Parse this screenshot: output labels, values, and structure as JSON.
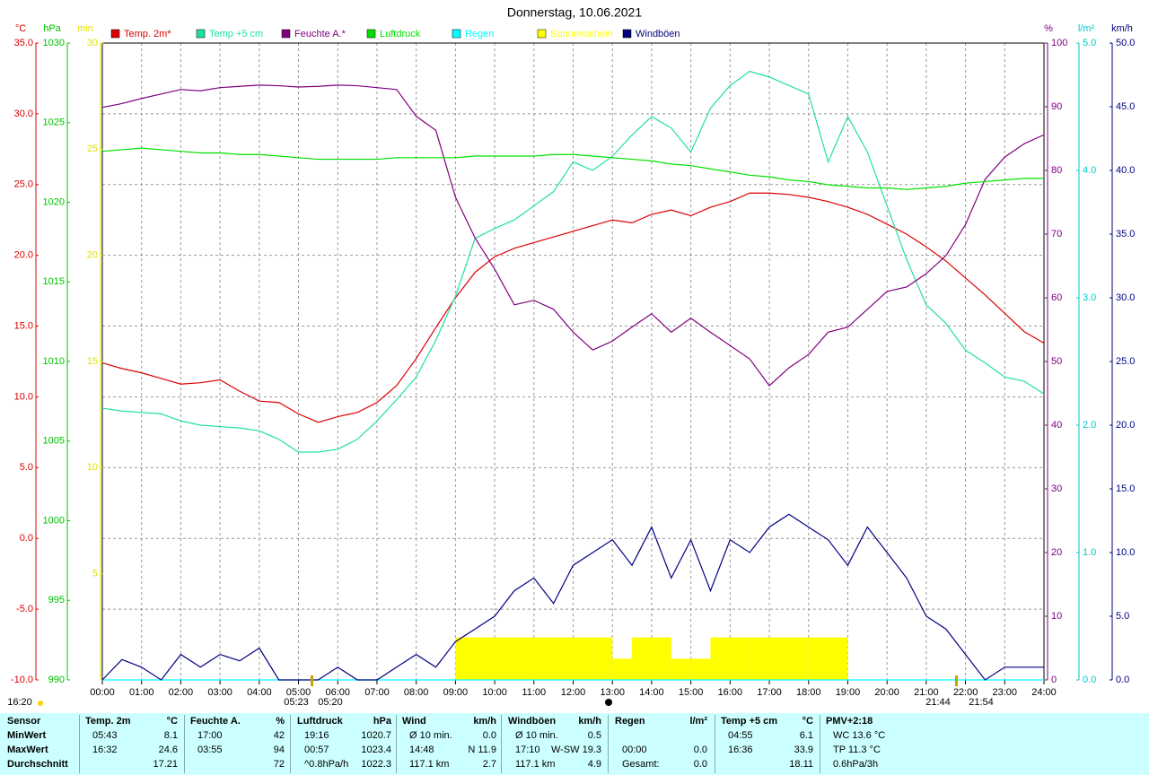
{
  "chart_data": {
    "type": "line",
    "title": "Donnerstag, 10.06.2021",
    "grid": true,
    "x": [
      0,
      0.5,
      1,
      1.5,
      2,
      2.5,
      3,
      3.5,
      4,
      4.5,
      5,
      5.5,
      6,
      6.5,
      7,
      7.5,
      8,
      8.5,
      9,
      9.5,
      10,
      10.5,
      11,
      11.5,
      12,
      12.5,
      13,
      13.5,
      14,
      14.5,
      15,
      15.5,
      16,
      16.5,
      17,
      17.5,
      18,
      18.5,
      19,
      19.5,
      20,
      20.5,
      21,
      21.5,
      22,
      22.5,
      23,
      23.5,
      24
    ],
    "xlim": [
      0,
      24
    ],
    "xticks": [
      {
        "value": 0,
        "label": "00:00"
      },
      {
        "value": 1,
        "label": "01:00"
      },
      {
        "value": 2,
        "label": "02:00"
      },
      {
        "value": 3,
        "label": "03:00"
      },
      {
        "value": 4,
        "label": "04:00"
      },
      {
        "value": 5,
        "label": "05:00"
      },
      {
        "value": 6,
        "label": "06:00"
      },
      {
        "value": 7,
        "label": "07:00"
      },
      {
        "value": 8,
        "label": "08:00"
      },
      {
        "value": 9,
        "label": "09:00"
      },
      {
        "value": 10,
        "label": "10:00"
      },
      {
        "value": 11,
        "label": "11:00"
      },
      {
        "value": 12,
        "label": "12:00"
      },
      {
        "value": 13,
        "label": "13:00"
      },
      {
        "value": 14,
        "label": "14:00"
      },
      {
        "value": 15,
        "label": "15:00"
      },
      {
        "value": 16,
        "label": "16:00"
      },
      {
        "value": 17,
        "label": "17:00"
      },
      {
        "value": 18,
        "label": "18:00"
      },
      {
        "value": 19,
        "label": "19:00"
      },
      {
        "value": 20,
        "label": "20:00"
      },
      {
        "value": 21,
        "label": "21:00"
      },
      {
        "value": 22,
        "label": "22:00"
      },
      {
        "value": 23,
        "label": "23:00"
      },
      {
        "value": 24,
        "label": "24:00"
      }
    ],
    "axes": [
      {
        "unit": "°C",
        "color": "#dd0000",
        "lim": [
          -10,
          35
        ],
        "ticks": [
          {
            "value": -10,
            "label": "-10.0"
          },
          {
            "value": -5,
            "label": "-5.0"
          },
          {
            "value": 0,
            "label": "0.0"
          },
          {
            "value": 5,
            "label": "5.0"
          },
          {
            "value": 10,
            "label": "10.0"
          },
          {
            "value": 15,
            "label": "15.0"
          },
          {
            "value": 20,
            "label": "20.0"
          },
          {
            "value": 25,
            "label": "25.0"
          },
          {
            "value": 30,
            "label": "30.0"
          },
          {
            "value": 35,
            "label": "35.0"
          }
        ]
      },
      {
        "unit": "hPa",
        "color": "#00c000",
        "lim": [
          990,
          1030
        ],
        "ticks": [
          990,
          995,
          1000,
          1005,
          1010,
          1015,
          1020,
          1025,
          1030
        ]
      },
      {
        "unit": "min",
        "color": "#e0e000",
        "lim": [
          0,
          30
        ],
        "ticks": [
          5,
          10,
          15,
          20,
          25,
          30
        ]
      },
      {
        "unit": "%",
        "color": "#800080",
        "lim": [
          0,
          100
        ],
        "ticks": [
          0,
          10,
          20,
          30,
          40,
          50,
          60,
          70,
          80,
          90,
          100
        ]
      },
      {
        "unit": "l/m²",
        "color": "#00c8c8",
        "lim": [
          0,
          5
        ],
        "ticks": [
          {
            "value": 0,
            "label": "0.0"
          },
          {
            "value": 1,
            "label": "1.0"
          },
          {
            "value": 2,
            "label": "2.0"
          },
          {
            "value": 3,
            "label": "3.0"
          },
          {
            "value": 4,
            "label": "4.0"
          },
          {
            "value": 5,
            "label": "5.0"
          }
        ]
      },
      {
        "unit": "km/h",
        "color": "#000080",
        "lim": [
          0,
          50
        ],
        "ticks": [
          {
            "value": 0,
            "label": "0.0"
          },
          {
            "value": 5,
            "label": "5.0"
          },
          {
            "value": 10,
            "label": "10.0"
          },
          {
            "value": 15,
            "label": "15.0"
          },
          {
            "value": 20,
            "label": "20.0"
          },
          {
            "value": 25,
            "label": "25.0"
          },
          {
            "value": 30,
            "label": "30.0"
          },
          {
            "value": 35,
            "label": "35.0"
          },
          {
            "value": 40,
            "label": "40.0"
          },
          {
            "value": 45,
            "label": "45.0"
          },
          {
            "value": 50,
            "label": "50.0"
          }
        ]
      }
    ],
    "series": [
      {
        "name": "Temp. 2m*",
        "color": "#dd0000",
        "axis": 0,
        "style": "line",
        "values": [
          12.4,
          12.0,
          11.7,
          11.3,
          10.9,
          11.0,
          11.2,
          10.4,
          9.7,
          9.6,
          8.8,
          8.2,
          8.6,
          8.9,
          9.6,
          10.8,
          12.7,
          14.9,
          17.0,
          18.8,
          19.9,
          20.5,
          20.9,
          21.3,
          21.7,
          22.1,
          22.5,
          22.3,
          22.9,
          23.2,
          22.8,
          23.4,
          23.8,
          24.4,
          24.4,
          24.3,
          24.1,
          23.8,
          23.4,
          22.9,
          22.2,
          21.5,
          20.6,
          19.6,
          18.4,
          17.2,
          15.9,
          14.6,
          13.8
        ]
      },
      {
        "name": "Temp +5 cm",
        "color": "#20e0a0",
        "axis": 0,
        "style": "line",
        "values": [
          9.2,
          9.0,
          8.9,
          8.8,
          8.3,
          8.0,
          7.9,
          7.8,
          7.6,
          7.0,
          6.1,
          6.1,
          6.3,
          7.0,
          8.3,
          9.8,
          11.4,
          14.0,
          17.1,
          21.2,
          21.9,
          22.5,
          23.5,
          24.5,
          26.6,
          26.0,
          27.0,
          28.5,
          29.8,
          29.0,
          27.3,
          30.4,
          32.0,
          33.0,
          32.6,
          32.0,
          31.4,
          26.6,
          29.8,
          27.3,
          23.5,
          19.7,
          16.5,
          15.2,
          13.3,
          12.4,
          11.4,
          11.1,
          10.2
        ]
      },
      {
        "name": "Feuchte A.*",
        "color": "#800080",
        "axis": 3,
        "style": "line",
        "values": [
          89.9,
          90.5,
          91.3,
          92.0,
          92.7,
          92.5,
          93.0,
          93.2,
          93.4,
          93.3,
          93.1,
          93.2,
          93.4,
          93.3,
          93.0,
          92.7,
          88.5,
          86.3,
          75.8,
          69.4,
          64.5,
          58.9,
          59.6,
          58.2,
          54.6,
          51.8,
          53.2,
          55.4,
          57.5,
          54.6,
          56.8,
          54.6,
          52.5,
          50.4,
          46.2,
          49.0,
          51.1,
          54.6,
          55.4,
          58.2,
          61.0,
          61.7,
          63.8,
          66.6,
          71.5,
          78.6,
          82.1,
          84.2,
          85.6
        ]
      },
      {
        "name": "Luftdruck",
        "color": "#00e000",
        "axis": 1,
        "style": "line",
        "values": [
          1023.2,
          1023.3,
          1023.4,
          1023.3,
          1023.2,
          1023.1,
          1023.1,
          1023.0,
          1023.0,
          1022.9,
          1022.8,
          1022.7,
          1022.7,
          1022.7,
          1022.7,
          1022.8,
          1022.8,
          1022.8,
          1022.8,
          1022.9,
          1022.9,
          1022.9,
          1022.9,
          1023.0,
          1023.0,
          1022.9,
          1022.8,
          1022.7,
          1022.6,
          1022.4,
          1022.3,
          1022.1,
          1021.9,
          1021.7,
          1021.6,
          1021.4,
          1021.3,
          1021.1,
          1021.0,
          1020.9,
          1020.9,
          1020.8,
          1020.9,
          1021.0,
          1021.2,
          1021.3,
          1021.4,
          1021.5,
          1021.5
        ]
      },
      {
        "name": "Regen",
        "color": "#00ffff",
        "axis": 4,
        "style": "line",
        "values": [
          0,
          0,
          0,
          0,
          0,
          0,
          0,
          0,
          0,
          0,
          0,
          0,
          0,
          0,
          0,
          0,
          0,
          0,
          0,
          0,
          0,
          0,
          0,
          0,
          0,
          0,
          0,
          0,
          0,
          0,
          0,
          0,
          0,
          0,
          0,
          0,
          0,
          0,
          0,
          0,
          0,
          0,
          0,
          0,
          0,
          0,
          0,
          0,
          0
        ]
      },
      {
        "name": "Sonnenschein",
        "color": "#ffff00",
        "axis": 2,
        "style": "bar",
        "values": [
          0,
          0,
          0,
          0,
          0,
          0,
          0,
          0,
          0,
          0,
          0,
          0,
          0,
          0,
          0,
          0,
          0,
          0,
          2,
          2,
          2,
          2,
          2,
          2,
          2,
          2,
          1,
          2,
          2,
          1,
          1,
          2,
          2,
          2,
          2,
          2,
          2,
          2,
          0,
          0,
          0,
          0,
          0,
          0,
          0,
          0,
          0,
          0,
          0
        ]
      },
      {
        "name": "Windböen",
        "color": "#000080",
        "axis": 5,
        "style": "step",
        "values": [
          0,
          1.6,
          1,
          0,
          2,
          1,
          2,
          1.5,
          2.5,
          0,
          0,
          0,
          1,
          0,
          0,
          1,
          2,
          1,
          3,
          4,
          5,
          7,
          8,
          6,
          9,
          10,
          11,
          9,
          12,
          8,
          11,
          7,
          11,
          10,
          12,
          13,
          12,
          11,
          9,
          12,
          10,
          8,
          5,
          4,
          2,
          0,
          1,
          1,
          1
        ]
      }
    ],
    "annotations": [
      "16:20",
      "05:23",
      "05:20",
      "21:44",
      "21:54"
    ]
  },
  "table": {
    "headers": [
      [
        "Sensor",
        ""
      ],
      [
        "Temp. 2m",
        "°C"
      ],
      [
        "Feuchte A.",
        "%"
      ],
      [
        "Luftdruck",
        "hPa"
      ],
      [
        "Wind",
        "km/h"
      ],
      [
        "Windböen",
        "km/h"
      ],
      [
        "Regen",
        "l/m²"
      ],
      [
        "Temp +5 cm",
        "°C"
      ],
      [
        "PMV+2:18",
        ""
      ]
    ],
    "rows": [
      [
        [
          "MinWert",
          ""
        ],
        [
          "05:43",
          "8.1"
        ],
        [
          "17:00",
          "42"
        ],
        [
          "19:16",
          "1020.7"
        ],
        [
          "Ø 10 min.",
          "0.0"
        ],
        [
          "Ø 10 min.",
          "0.5"
        ],
        [
          "",
          ""
        ],
        [
          "04:55",
          "6.1"
        ],
        [
          "WC 13.6 °C",
          ""
        ]
      ],
      [
        [
          "MaxWert",
          ""
        ],
        [
          "16:32",
          "24.6"
        ],
        [
          "03:55",
          "94"
        ],
        [
          "00:57",
          "1023.4"
        ],
        [
          "14:48",
          "N 11.9"
        ],
        [
          "17:10",
          "W-SW 19.3"
        ],
        [
          "00:00",
          "0.0"
        ],
        [
          "16:36",
          "33.9"
        ],
        [
          "TP 11.3 °C",
          ""
        ]
      ],
      [
        [
          "Durchschnitt",
          ""
        ],
        [
          "",
          "17.21"
        ],
        [
          "",
          "72"
        ],
        [
          "^0.8hPa/h",
          "1022.3"
        ],
        [
          "117.1 km",
          "2.7"
        ],
        [
          "117.1 km",
          "4.9"
        ],
        [
          "Gesamt:",
          "0.0"
        ],
        [
          "",
          "18.11"
        ],
        [
          "0.6hPa/3h",
          ""
        ]
      ]
    ]
  }
}
